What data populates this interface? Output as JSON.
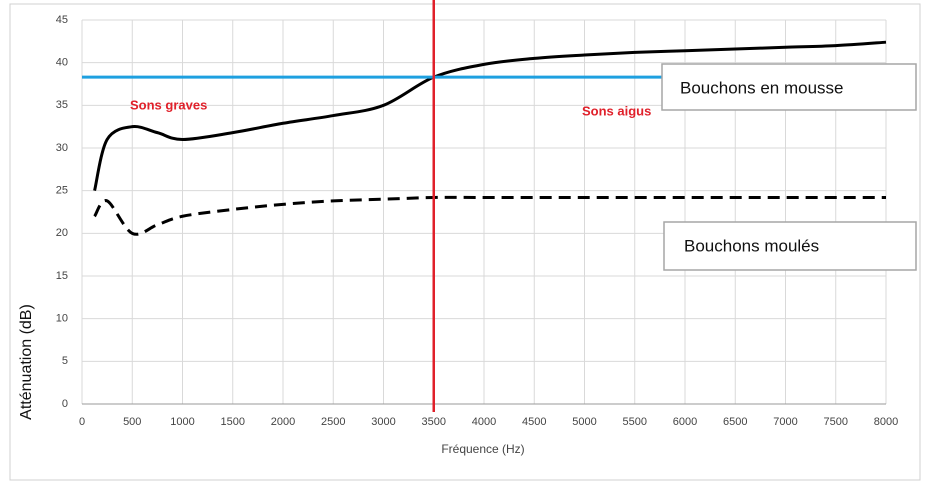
{
  "chart_data": {
    "type": "line",
    "xlabel": "Fréquence (Hz)",
    "ylabel": "Atténuation (dB)",
    "xlim": [
      0,
      8000
    ],
    "xticks": [
      0,
      500,
      1000,
      1500,
      2000,
      2500,
      3000,
      3500,
      4000,
      4500,
      5000,
      5500,
      6000,
      6500,
      7000,
      7500,
      8000
    ],
    "ylim": [
      0,
      45
    ],
    "yticks": [
      0,
      5,
      10,
      15,
      20,
      25,
      30,
      35,
      40,
      45
    ],
    "grid": true,
    "series": [
      {
        "name": "Bouchons en mousse",
        "color": "#000000",
        "dash": false,
        "x": [
          125,
          250,
          500,
          750,
          1000,
          1500,
          2000,
          2500,
          3000,
          3500,
          4000,
          4500,
          5000,
          5500,
          6000,
          6500,
          7000,
          7500,
          8000
        ],
        "values": [
          25,
          31,
          32.5,
          31.8,
          31,
          31.8,
          32.9,
          33.8,
          35,
          38.3,
          39.8,
          40.5,
          40.9,
          41.2,
          41.4,
          41.6,
          41.8,
          42,
          42.4
        ]
      },
      {
        "name": "Bouchons moulés",
        "color": "#000000",
        "dash": true,
        "x": [
          125,
          250,
          500,
          750,
          1000,
          1500,
          2000,
          2500,
          3000,
          3500,
          4000,
          5000,
          6000,
          7000,
          8000
        ],
        "values": [
          22,
          23.8,
          20,
          21,
          22,
          22.8,
          23.4,
          23.8,
          24,
          24.2,
          24.2,
          24.2,
          24.2,
          24.2,
          24.2
        ]
      }
    ],
    "hline": {
      "value": 38.3,
      "color": "#1ea0e0"
    },
    "vline": {
      "value": 3500,
      "color": "#e0202a"
    },
    "annotations": [
      "Sons graves",
      "Sons aigus"
    ]
  }
}
